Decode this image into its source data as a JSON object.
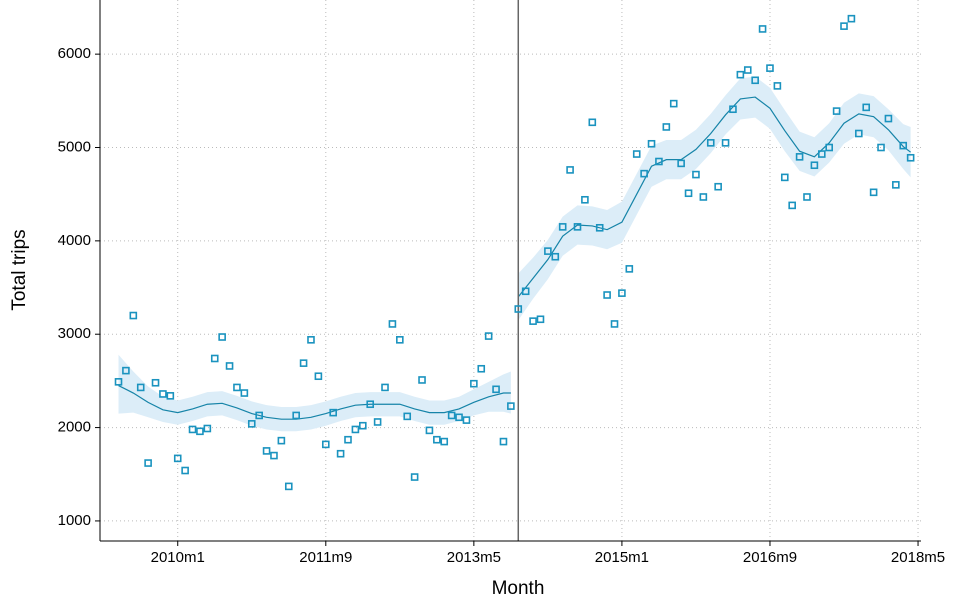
{
  "chart_data": {
    "type": "scatter",
    "x_label": "Month",
    "y_label": "Total trips",
    "xlim": [
      589.5,
      700.4
    ],
    "ylim": [
      785,
      6580
    ],
    "xticks": [
      {
        "value": 600,
        "label": "2010m1"
      },
      {
        "value": 620,
        "label": "2011m9"
      },
      {
        "value": 640,
        "label": "2013m5"
      },
      {
        "value": 660,
        "label": "2015m1"
      },
      {
        "value": 680,
        "label": "2016m9"
      },
      {
        "value": 700,
        "label": "2018m5"
      }
    ],
    "yticks": [
      1000,
      2000,
      3000,
      4000,
      5000,
      6000
    ],
    "grid": true,
    "cutoff": 646,
    "cutoff_color": "#666666",
    "points": {
      "color": "#1a93bf",
      "x": [
        592,
        593,
        594,
        595,
        596,
        597,
        598,
        599,
        600,
        601,
        602,
        603,
        604,
        605,
        606,
        607,
        608,
        609,
        610,
        611,
        612,
        613,
        614,
        615,
        616,
        617,
        618,
        619,
        620,
        621,
        622,
        623,
        624,
        625,
        626,
        627,
        628,
        629,
        630,
        631,
        632,
        633,
        634,
        635,
        636,
        637,
        638,
        639,
        640,
        641,
        642,
        643,
        644,
        645,
        646,
        647,
        648,
        649,
        650,
        651,
        652,
        653,
        654,
        655,
        656,
        657,
        658,
        659,
        660,
        661,
        662,
        663,
        664,
        665,
        666,
        667,
        668,
        669,
        670,
        671,
        672,
        673,
        674,
        675,
        676,
        677,
        678,
        679,
        680,
        681,
        682,
        683,
        684,
        685,
        686,
        687,
        688,
        689,
        690,
        691,
        692,
        693,
        694,
        695,
        696,
        697,
        698,
        699
      ],
      "values": [
        2490,
        2610,
        3200,
        2430,
        1620,
        2480,
        2360,
        2340,
        1670,
        1540,
        1980,
        1960,
        1990,
        2740,
        2970,
        2660,
        2430,
        2370,
        2040,
        2130,
        1750,
        1700,
        1860,
        1370,
        2130,
        2690,
        2940,
        2550,
        1820,
        2160,
        1720,
        1870,
        1980,
        2020,
        2250,
        2060,
        2430,
        3110,
        2940,
        2120,
        1470,
        2510,
        1970,
        1870,
        1850,
        2130,
        2110,
        2080,
        2470,
        2630,
        2980,
        2410,
        1850,
        2230,
        3270,
        3460,
        3140,
        3160,
        3890,
        3830,
        4150,
        4760,
        4150,
        4440,
        5270,
        4140,
        3420,
        3110,
        3440,
        3700,
        4930,
        4720,
        5040,
        4850,
        5220,
        5470,
        4830,
        4510,
        4710,
        4470,
        5050,
        4580,
        5050,
        5410,
        5780,
        5830,
        5720,
        6270,
        5850,
        5660,
        4680,
        4380,
        4900,
        4470,
        4810,
        4930,
        5000,
        5390,
        6300,
        6380,
        5150,
        5430,
        4520,
        5000,
        5310,
        4600,
        5020,
        4890
      ]
    },
    "fits": [
      {
        "color": "#1684a8",
        "band_color": "#dcedf8",
        "x": [
          592,
          594,
          596,
          598,
          600,
          602,
          604,
          606,
          608,
          610,
          612,
          614,
          616,
          618,
          620,
          622,
          624,
          626,
          628,
          630,
          632,
          634,
          636,
          638,
          640,
          642,
          644,
          645
        ],
        "values": [
          2450,
          2370,
          2270,
          2190,
          2160,
          2200,
          2250,
          2260,
          2210,
          2150,
          2110,
          2090,
          2090,
          2110,
          2150,
          2200,
          2240,
          2250,
          2250,
          2250,
          2200,
          2160,
          2160,
          2200,
          2270,
          2330,
          2370,
          2370
        ],
        "lower": [
          2150,
          2160,
          2110,
          2060,
          2030,
          2070,
          2120,
          2130,
          2080,
          2020,
          1980,
          1960,
          1960,
          1980,
          2020,
          2070,
          2110,
          2120,
          2120,
          2120,
          2070,
          2030,
          2030,
          2070,
          2130,
          2170,
          2170,
          2150
        ],
        "upper": [
          2780,
          2600,
          2440,
          2330,
          2290,
          2330,
          2380,
          2390,
          2340,
          2280,
          2240,
          2220,
          2220,
          2240,
          2280,
          2330,
          2370,
          2380,
          2380,
          2380,
          2330,
          2290,
          2290,
          2330,
          2410,
          2490,
          2570,
          2600
        ]
      },
      {
        "color": "#1684a8",
        "band_color": "#dcedf8",
        "x": [
          646,
          648,
          650,
          652,
          654,
          656,
          658,
          660,
          662,
          664,
          666,
          668,
          670,
          672,
          674,
          676,
          678,
          680,
          682,
          684,
          686,
          688,
          690,
          692,
          694,
          696,
          698,
          699
        ],
        "values": [
          3400,
          3600,
          3800,
          4050,
          4170,
          4160,
          4120,
          4200,
          4500,
          4800,
          4870,
          4870,
          4980,
          5150,
          5350,
          5520,
          5540,
          5420,
          5180,
          4960,
          4900,
          5050,
          5260,
          5360,
          5330,
          5190,
          5010,
          4950
        ],
        "lower": [
          3150,
          3380,
          3590,
          3840,
          3960,
          3950,
          3910,
          3980,
          4280,
          4580,
          4660,
          4660,
          4770,
          4940,
          5140,
          5300,
          5320,
          5200,
          4960,
          4750,
          4690,
          4840,
          5040,
          5140,
          5110,
          4970,
          4770,
          4680
        ],
        "upper": [
          3650,
          3820,
          4010,
          4260,
          4380,
          4370,
          4330,
          4420,
          4720,
          5020,
          5080,
          5080,
          5190,
          5360,
          5560,
          5740,
          5760,
          5640,
          5400,
          5170,
          5110,
          5260,
          5480,
          5580,
          5550,
          5410,
          5250,
          5220
        ]
      }
    ]
  }
}
